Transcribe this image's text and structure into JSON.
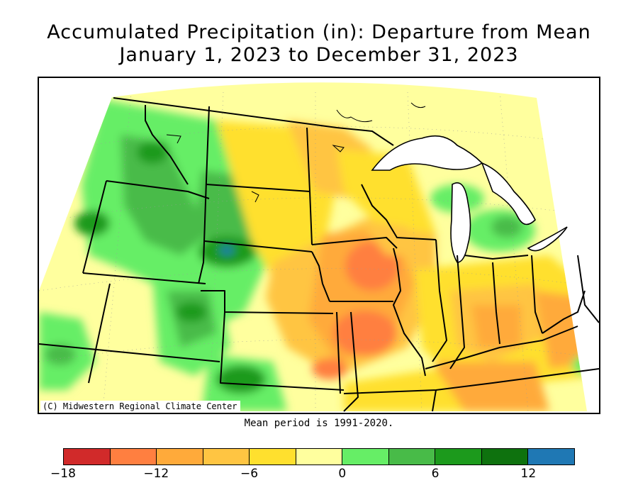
{
  "title_line1": "Accumulated Precipitation (in): Departure from Mean",
  "title_line2": "January 1, 2023 to December 31, 2023",
  "credit": "(C) Midwestern Regional Climate Center",
  "footnote": "Mean period is 1991-2020.",
  "legend": {
    "colors": [
      "#d12a2a",
      "#ff7f40",
      "#ffaa3a",
      "#ffc542",
      "#ffe02e",
      "#ffff9e",
      "#66ee66",
      "#48bb48",
      "#1c9a1c",
      "#0e720e",
      "#1f78b4"
    ],
    "ticks": [
      {
        "label": "−18",
        "value": -18
      },
      {
        "label": "−12",
        "value": -12
      },
      {
        "label": "−6",
        "value": -6
      },
      {
        "label": "0",
        "value": 0
      },
      {
        "label": "6",
        "value": 6
      },
      {
        "label": "12",
        "value": 12
      }
    ],
    "min": -18,
    "max": 15
  }
}
